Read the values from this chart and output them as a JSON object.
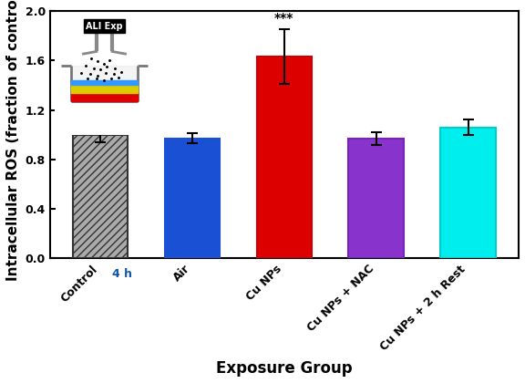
{
  "categories": [
    "Control",
    "Air",
    "Cu NPs",
    "Cu NPs + NAC",
    "Cu NPs + 2 h Rest"
  ],
  "values": [
    1.0,
    0.97,
    1.63,
    0.97,
    1.06
  ],
  "errors": [
    0.06,
    0.04,
    0.22,
    0.05,
    0.06
  ],
  "bar_colors": [
    "#aaaaaa",
    "#1a50d4",
    "#dd0000",
    "#8833cc",
    "#00eeee"
  ],
  "hatch": [
    "////",
    "",
    "",
    "",
    ""
  ],
  "edgecolors": [
    "#333333",
    "#1a50d4",
    "#cc0000",
    "#7722bb",
    "#00cccc"
  ],
  "ylabel": "Intracellular ROS (fraction of control)",
  "xlabel": "Exposure Group",
  "ylim": [
    0.0,
    2.0
  ],
  "yticks": [
    0.0,
    0.4,
    0.8,
    1.2,
    1.6,
    2.0
  ],
  "significance_label": "***",
  "significance_bar_index": 2,
  "axis_label_fontsize": 11,
  "tick_fontsize": 9,
  "background_color": "#ffffff",
  "inset_label": "ALI Exp",
  "inset_sublabel": "4 h"
}
